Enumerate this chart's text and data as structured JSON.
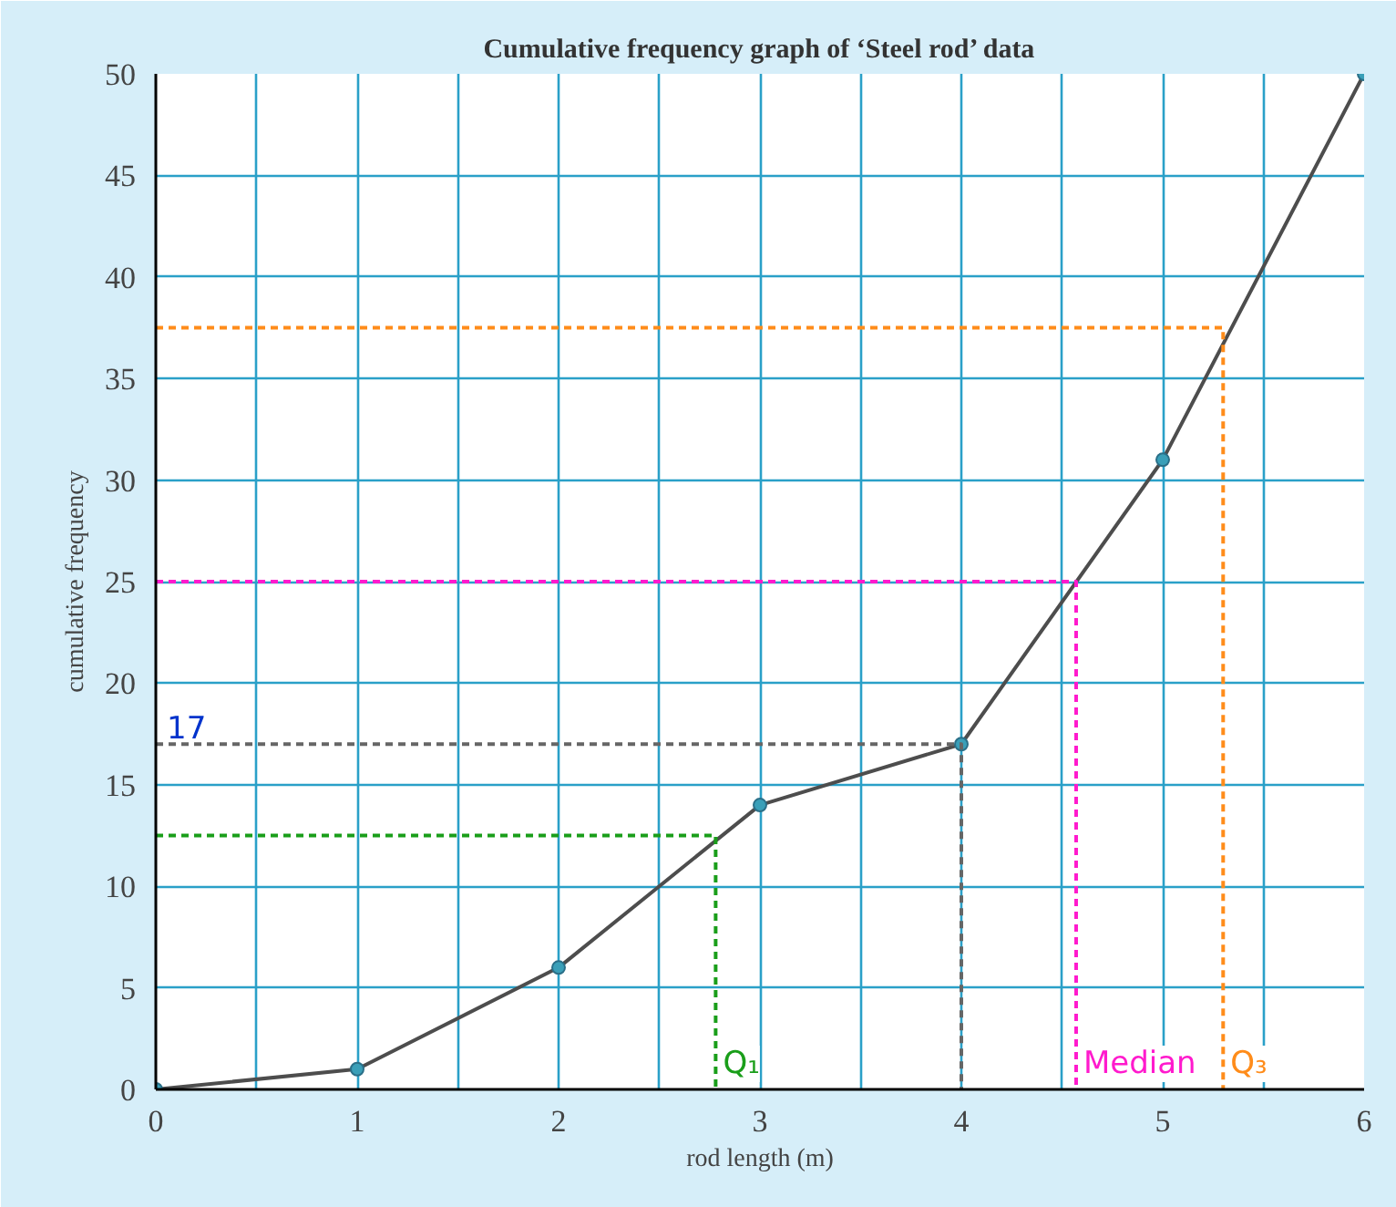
{
  "chart_data": {
    "type": "line",
    "title": "Cumulative frequency graph of ‘Steel rod’ data",
    "xlabel": "rod length (m)",
    "ylabel": "cumulative frequency",
    "xlim": [
      0,
      6
    ],
    "ylim": [
      0,
      50
    ],
    "xticks": [
      0,
      {
        "value": 0.5,
        "label": null
      },
      1,
      {
        "value": 1.5,
        "label": null
      },
      2,
      {
        "value": 2.5,
        "label": null
      },
      3,
      {
        "value": 3.5,
        "label": null
      },
      4,
      {
        "value": 4.5,
        "label": null
      },
      5,
      {
        "value": 5.5,
        "label": null
      },
      6
    ],
    "yticks": [
      0,
      5,
      10,
      15,
      20,
      25,
      30,
      35,
      40,
      45,
      50
    ],
    "grid": true,
    "marker": "circle",
    "series": [
      {
        "color": "#4d4d4d",
        "x": [
          0,
          1,
          2,
          3,
          4,
          5,
          6
        ],
        "values": [
          0,
          1,
          6,
          14,
          17,
          31,
          50
        ]
      },
      {
        "color": "#ff8c1a",
        "line_style": "dashed",
        "marker": "none",
        "x": [
          0,
          5.3,
          5.3
        ],
        "values": [
          37.5,
          37.5,
          0
        ]
      },
      {
        "color": "#ff1acd",
        "line_style": "dashed",
        "marker": "none",
        "x": [
          0,
          4.57,
          4.57
        ],
        "values": [
          25,
          25,
          0
        ]
      },
      {
        "color": "#666666",
        "line_style": "dashed",
        "marker": "none",
        "x": [
          0,
          4,
          4
        ],
        "values": [
          17,
          17,
          0
        ]
      },
      {
        "color": "#1a9e1a",
        "line_style": "dashed",
        "marker": "none",
        "x": [
          0,
          2.78,
          2.78
        ],
        "values": [
          12.5,
          12.5,
          0
        ]
      }
    ],
    "annotations": [
      {
        "text": "Q₁",
        "x": 2.78,
        "y": 0
      },
      {
        "text": "Median",
        "x": 4.57,
        "y": 0
      },
      {
        "text": "Q₃",
        "x": 5.3,
        "y": 0
      },
      {
        "text": "17",
        "y": 17
      }
    ]
  }
}
